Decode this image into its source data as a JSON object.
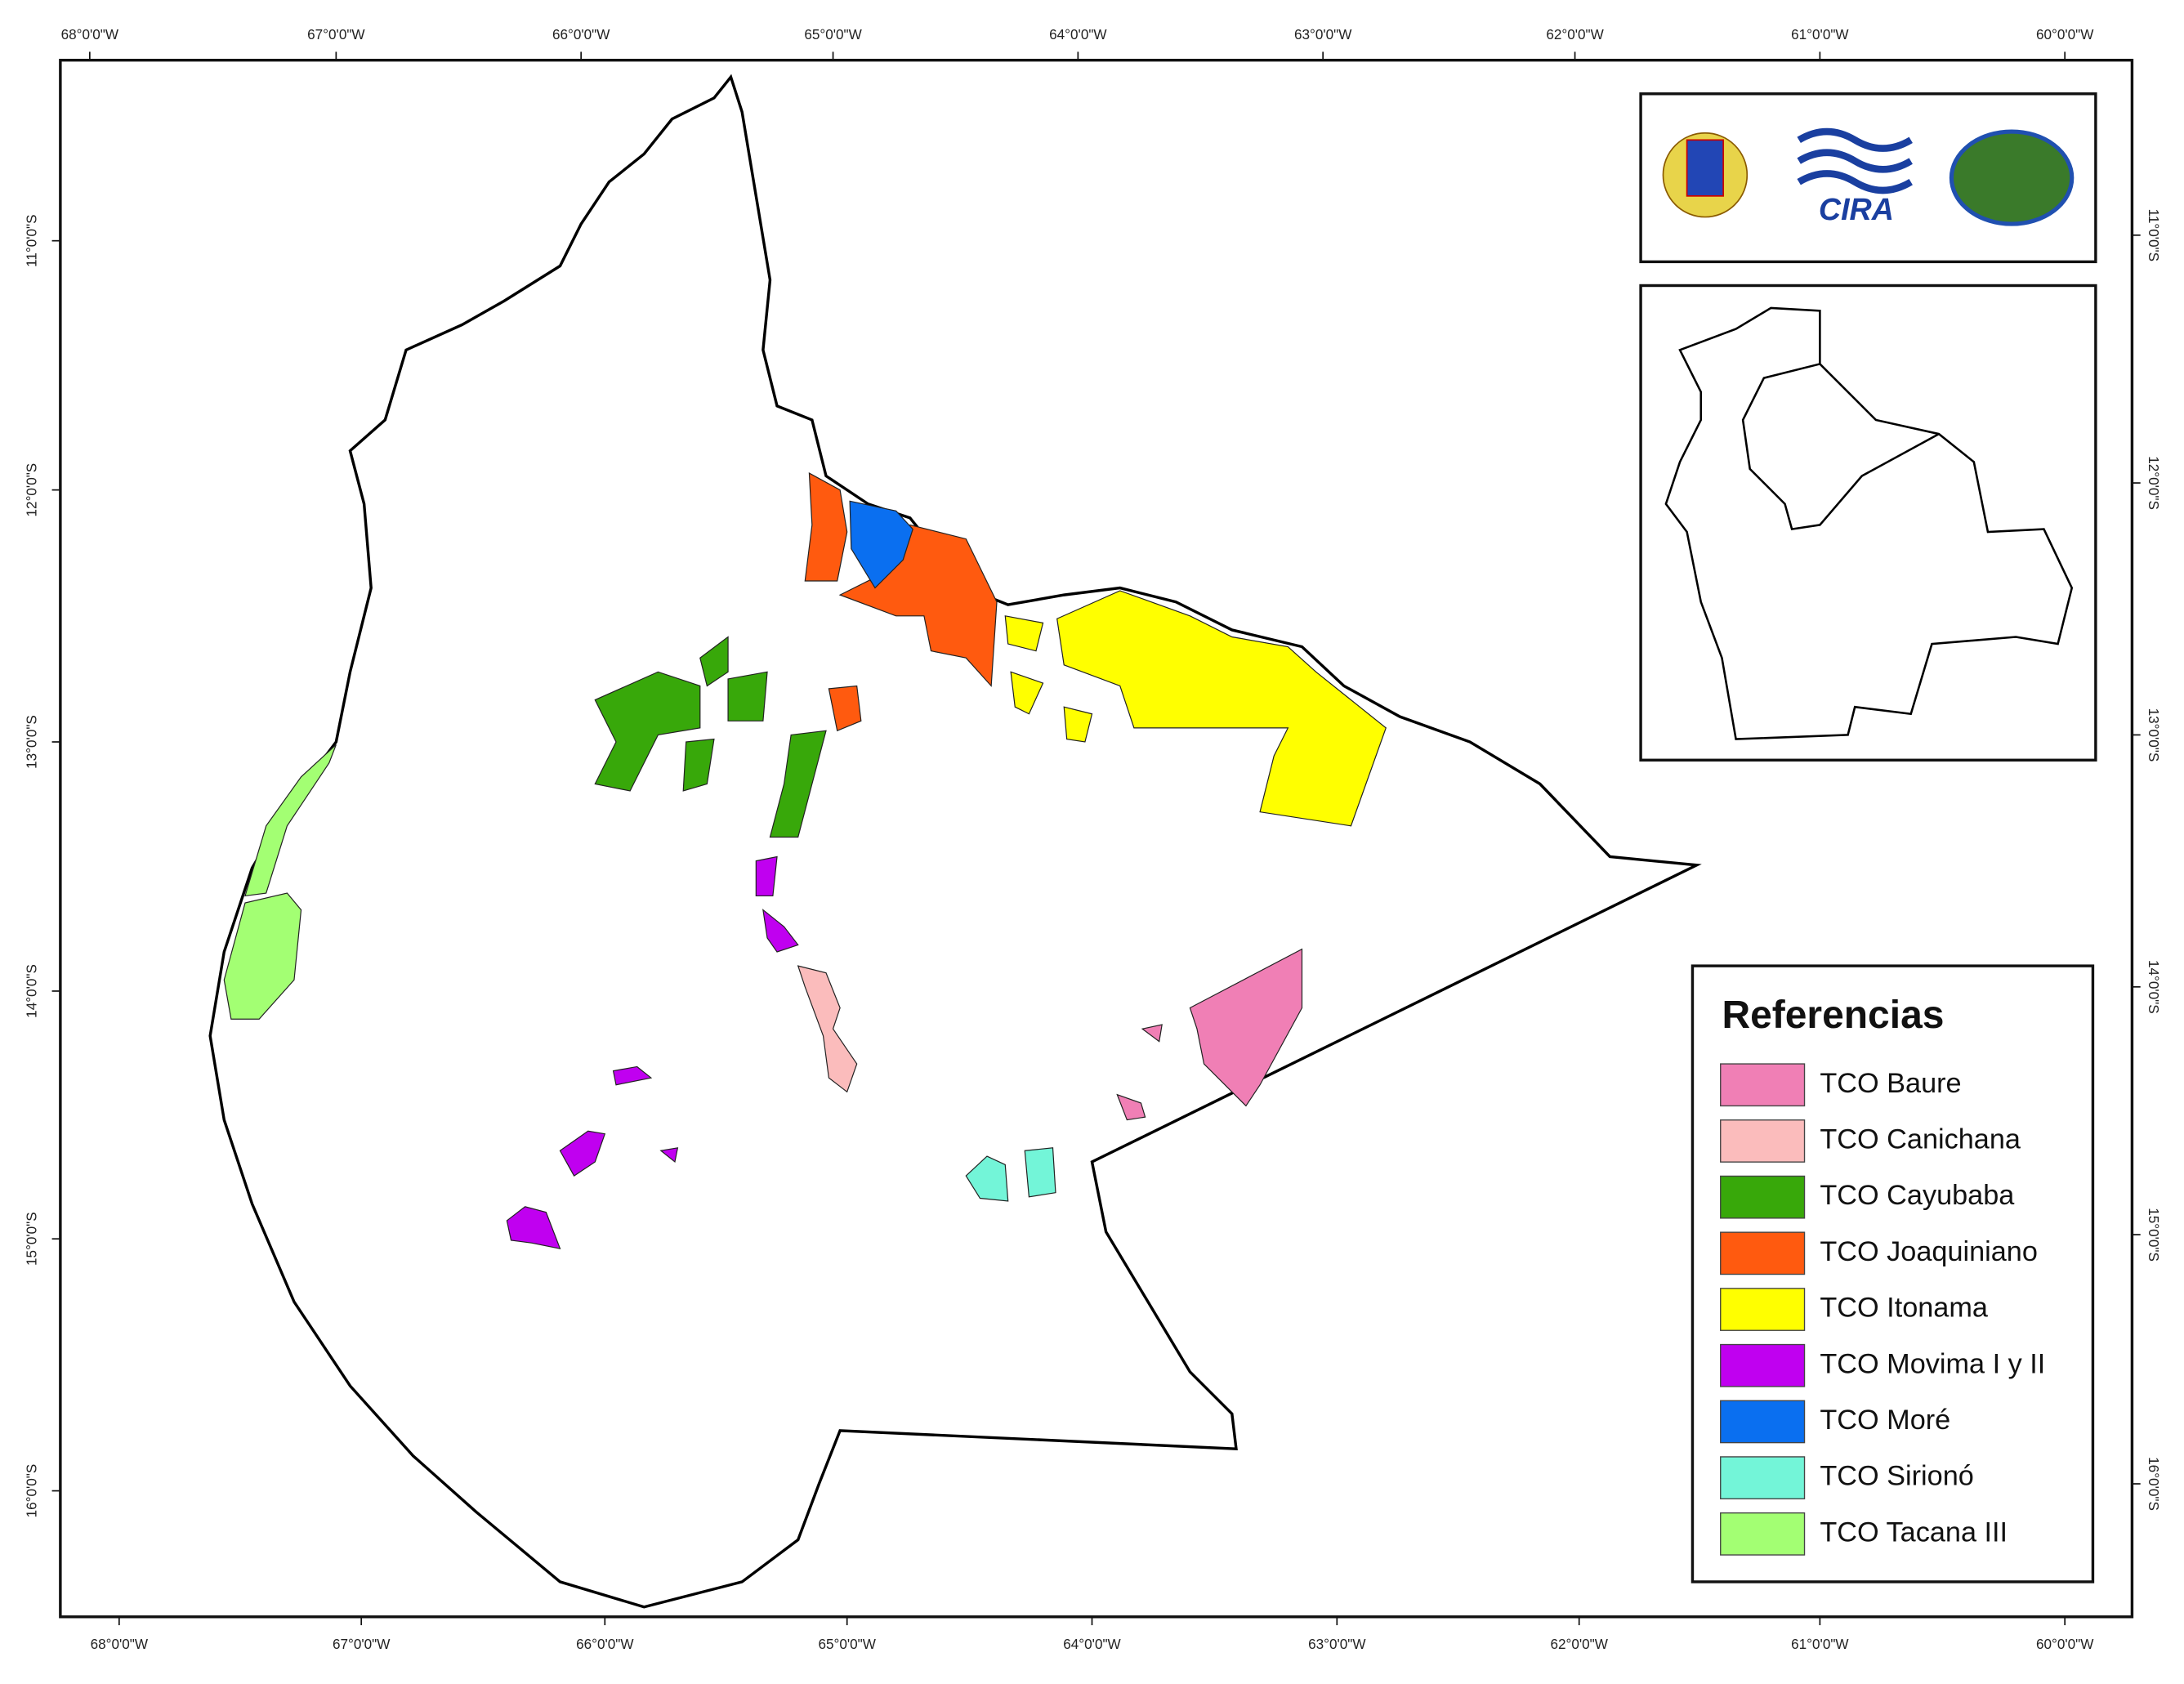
{
  "map": {
    "top_labels": [
      "68°0'0\"W",
      "67°0'0\"W",
      "66°0'0\"W",
      "65°0'0\"W",
      "64°0'0\"W",
      "63°0'0\"W",
      "62°0'0\"W",
      "61°0'0\"W",
      "60°0'0\"W"
    ],
    "bottom_labels": [
      "68°0'0\"W",
      "67°0'0\"W",
      "66°0'0\"W",
      "65°0'0\"W",
      "64°0'0\"W",
      "63°0'0\"W",
      "62°0'0\"W",
      "61°0'0\"W",
      "60°0'0\"W"
    ],
    "left_labels": [
      "11°0'0\"S",
      "12°0'0\"S",
      "13°0'0\"S",
      "14°0'0\"S",
      "15°0'0\"S",
      "16°0'0\"S"
    ],
    "right_labels": [
      "11°0'0\"S",
      "12°0'0\"S",
      "13°0'0\"S",
      "14°0'0\"S",
      "15°0'0\"S",
      "16°0'0\"S"
    ],
    "logo_text": "CIRA",
    "legend": {
      "title": "Referencias",
      "items": [
        {
          "label": "TCO Baure",
          "color": "#f07fb5"
        },
        {
          "label": "TCO Canichana",
          "color": "#fbbcbc"
        },
        {
          "label": "TCO Cayubaba",
          "color": "#38a80a"
        },
        {
          "label": "TCO Joaquiniano",
          "color": "#ff5a0f"
        },
        {
          "label": "TCO Itonama",
          "color": "#ffff00"
        },
        {
          "label": "TCO Movima I y II",
          "color": "#c000f0"
        },
        {
          "label": "TCO Moré",
          "color": "#0a6ff0"
        },
        {
          "label": "TCO Sirionó",
          "color": "#73f5d8"
        },
        {
          "label": "TCO Tacana III",
          "color": "#a3ff73"
        }
      ]
    }
  }
}
